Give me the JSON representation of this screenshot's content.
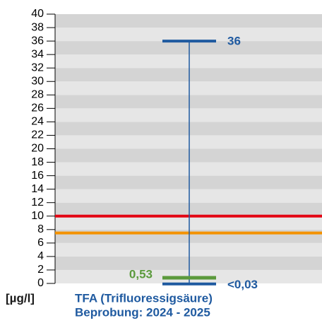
{
  "chart_data": {
    "type": "range",
    "y_label": "[µg/l]",
    "title": "TFA (Trifluoressigsäure)",
    "subtitle": "Beprobung: 2024 - 2025",
    "ylim": [
      0,
      40
    ],
    "yticks": [
      0,
      2,
      4,
      6,
      8,
      10,
      12,
      14,
      16,
      18,
      20,
      22,
      24,
      26,
      28,
      30,
      32,
      34,
      36,
      38,
      40
    ],
    "max": 36,
    "min": 0.03,
    "min_label": "<0,03",
    "median": 0.53,
    "median_label": "0,53",
    "range_color": "#1f5aa0",
    "median_color": "#5b9a3c",
    "thresholds": [
      {
        "value": 10,
        "color": "#e30613"
      },
      {
        "value": 7.5,
        "color": "#f39200"
      }
    ]
  }
}
